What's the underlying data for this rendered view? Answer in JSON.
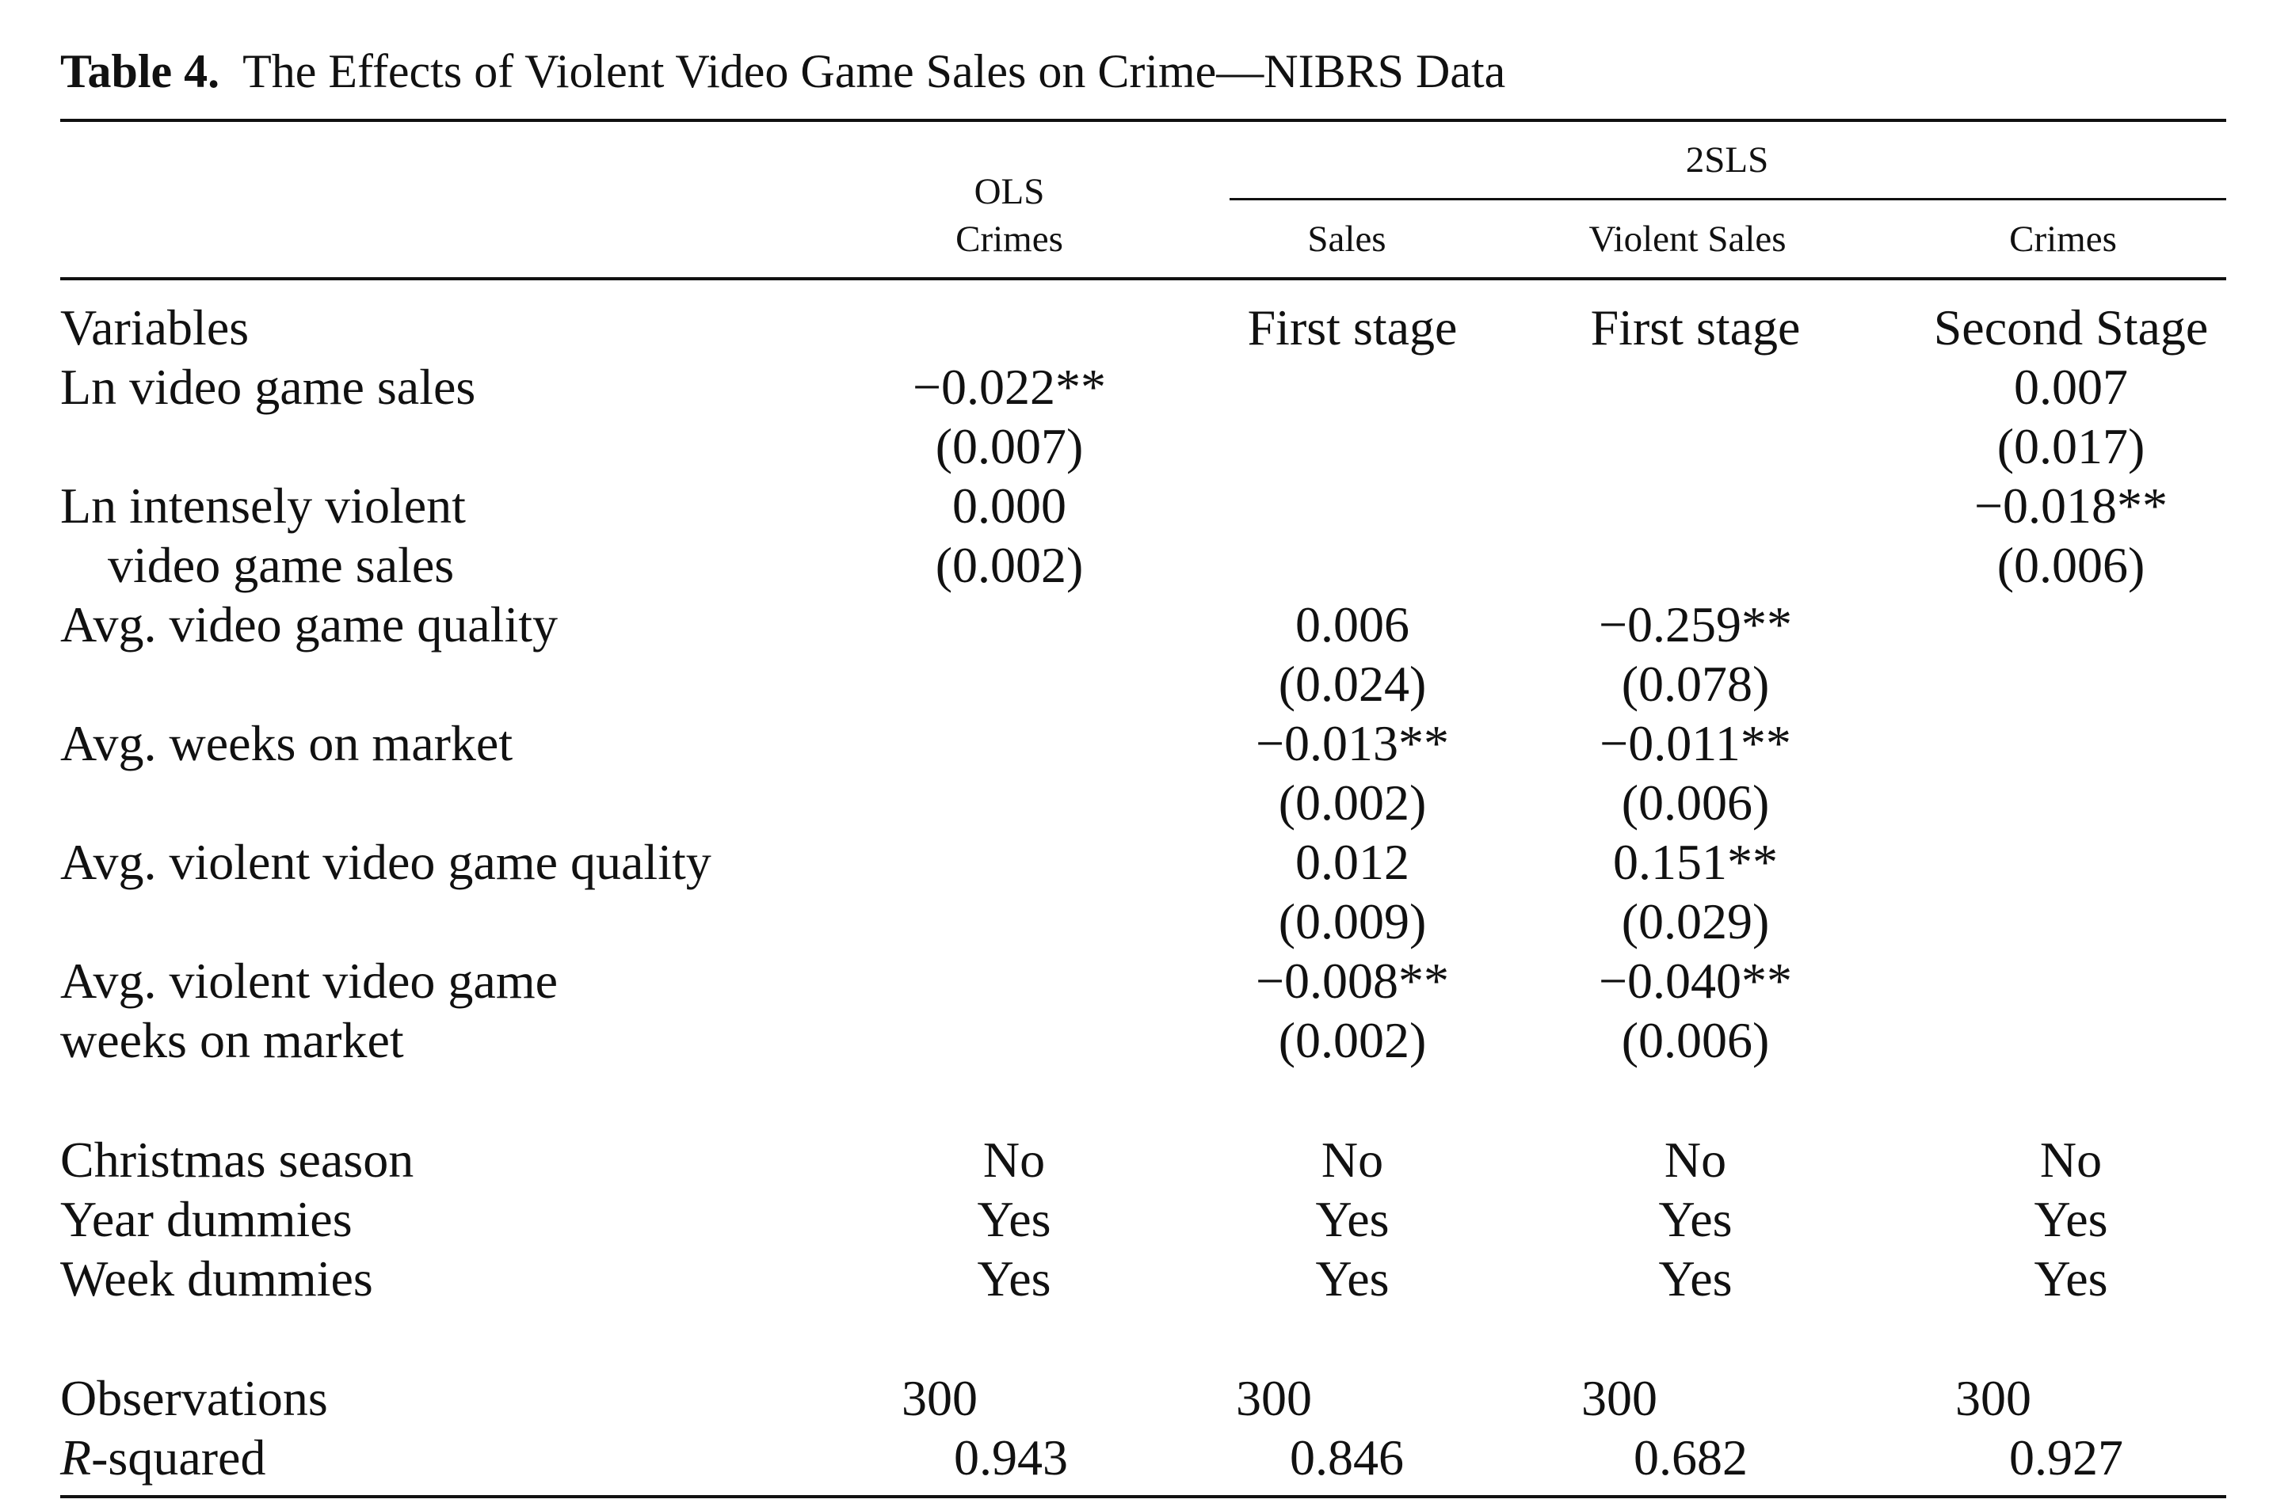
{
  "caption": {
    "label": "Table 4.",
    "title": "The Effects of Violent Video Game Sales on Crime—NIBRS Data"
  },
  "header": {
    "group_2sls": "2SLS",
    "ols_top": "OLS",
    "ols_bottom": "Crimes",
    "sales": "Sales",
    "violent_sales": "Violent Sales",
    "crimes": "Crimes"
  },
  "stage_row": {
    "label": "Variables",
    "col1": "",
    "col2": "First stage",
    "col3": "First stage",
    "col4": "Second Stage"
  },
  "rows": [
    {
      "label": "Ln video game sales",
      "ols": "−0.022**",
      "sales": "",
      "violent": "",
      "crimes": "0.007"
    },
    {
      "label": "",
      "ols": "(0.007)",
      "sales": "",
      "violent": "",
      "crimes": "(0.017)"
    },
    {
      "label": "Ln intensely violent",
      "ols": "0.000",
      "sales": "",
      "violent": "",
      "crimes": "−0.018**"
    },
    {
      "label": "video game sales",
      "ols": "(0.002)",
      "sales": "",
      "violent": "",
      "crimes": "(0.006)"
    },
    {
      "label": "Avg. video game quality",
      "ols": "",
      "sales": "0.006",
      "violent": "−0.259**",
      "crimes": ""
    },
    {
      "label": "",
      "ols": "",
      "sales": "(0.024)",
      "violent": "(0.078)",
      "crimes": ""
    },
    {
      "label": "Avg. weeks on market",
      "ols": "",
      "sales": "−0.013**",
      "violent": "−0.011**",
      "crimes": ""
    },
    {
      "label": "",
      "ols": "",
      "sales": "(0.002)",
      "violent": "(0.006)",
      "crimes": ""
    },
    {
      "label": "Avg. violent video game quality",
      "ols": "",
      "sales": "0.012",
      "violent": "0.151**",
      "crimes": ""
    },
    {
      "label": "",
      "ols": "",
      "sales": "(0.009)",
      "violent": "(0.029)",
      "crimes": ""
    },
    {
      "label": "Avg. violent video game",
      "ols": "",
      "sales": "−0.008**",
      "violent": "−0.040**",
      "crimes": ""
    },
    {
      "label": "weeks on market",
      "ols": "",
      "sales": "(0.002)",
      "violent": "(0.006)",
      "crimes": ""
    }
  ],
  "controls": [
    {
      "label": "Christmas season",
      "ols": "No",
      "sales": "No",
      "violent": "No",
      "crimes": "No"
    },
    {
      "label": "Year dummies",
      "ols": "Yes",
      "sales": "Yes",
      "violent": "Yes",
      "crimes": "Yes"
    },
    {
      "label": "Week dummies",
      "ols": "Yes",
      "sales": "Yes",
      "violent": "Yes",
      "crimes": "Yes"
    }
  ],
  "stats": {
    "obs_label": "Observations",
    "obs": [
      "300",
      "300",
      "300",
      "300"
    ],
    "r2_label_italic": "R",
    "r2_label_rest": "-squared",
    "r2": [
      "0.943",
      "0.846",
      "0.682",
      "0.927"
    ]
  }
}
